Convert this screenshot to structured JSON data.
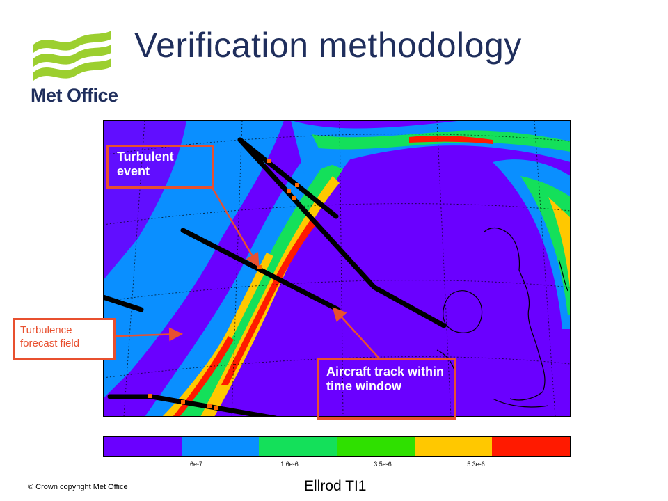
{
  "header": {
    "title": "Verification methodology",
    "logo_text": "Met Office"
  },
  "callouts": {
    "turbulent_event": "Turbulent event",
    "aircraft_track": "Aircraft track within time window",
    "forecast_field": "Turbulence forecast field"
  },
  "colorbar": {
    "colors": [
      "#6a00ff",
      "#0a8fff",
      "#14e05a",
      "#2fe000",
      "#ffc800",
      "#ff1a00"
    ],
    "ticks": [
      "6e-7",
      "1.6e-6",
      "3.5e-6",
      "5.3e-6"
    ]
  },
  "caption": "Ellrod TI1",
  "footer": {
    "copyright": "© Crown  copyright   Met Office"
  },
  "colors": {
    "title": "#1f2e5c",
    "logo_green": "#9ccf2f",
    "callout": "#e8502f"
  }
}
